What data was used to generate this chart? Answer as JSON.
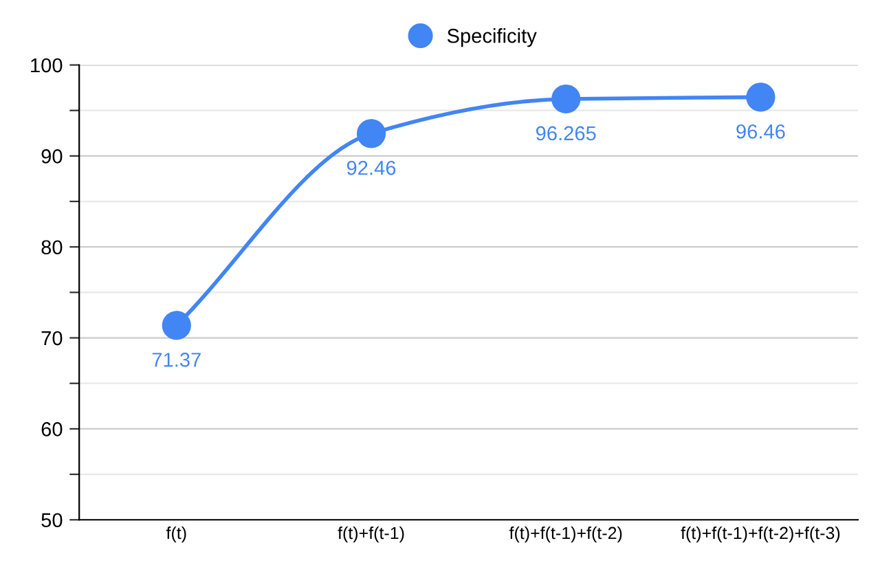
{
  "chart_data": {
    "type": "line",
    "categories": [
      "f(t)",
      "f(t)+f(t-1)",
      "f(t)+f(t-1)+f(t-2)",
      "f(t)+f(t-1)+f(t-2)+f(t-3)"
    ],
    "series": [
      {
        "name": "Specificity",
        "color": "#4285f4",
        "values": [
          71.37,
          92.46,
          96.265,
          96.46
        ]
      }
    ],
    "ylim": [
      50,
      100
    ],
    "yticks": [
      50,
      {
        "value": 55,
        "label": null
      },
      60,
      {
        "value": 65,
        "label": null
      },
      70,
      {
        "value": 75,
        "label": null
      },
      80,
      {
        "value": 85,
        "label": null
      },
      90,
      {
        "value": 95,
        "label": null
      },
      100
    ],
    "grid": "y",
    "legend": "top",
    "marker": "circle",
    "line_style": "solid",
    "data_labels": true
  }
}
